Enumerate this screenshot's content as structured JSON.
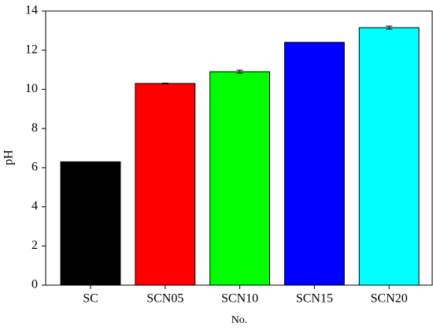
{
  "chart_data": {
    "type": "bar",
    "x_label": "No.",
    "y_label": "pH",
    "categories": [
      "SC",
      "SCN05",
      "SCN10",
      "SCN15",
      "SCN20"
    ],
    "values": [
      6.3,
      10.3,
      10.9,
      12.4,
      13.15
    ],
    "errors": [
      null,
      0.02,
      0.08,
      null,
      0.08
    ],
    "colors": [
      "#000000",
      "#ff0000",
      "#00ff00",
      "#0000ff",
      "#00ffff"
    ],
    "ylim": [
      0,
      14
    ],
    "yticks": [
      0,
      2,
      4,
      6,
      8,
      10,
      12,
      14
    ],
    "grid": false
  }
}
